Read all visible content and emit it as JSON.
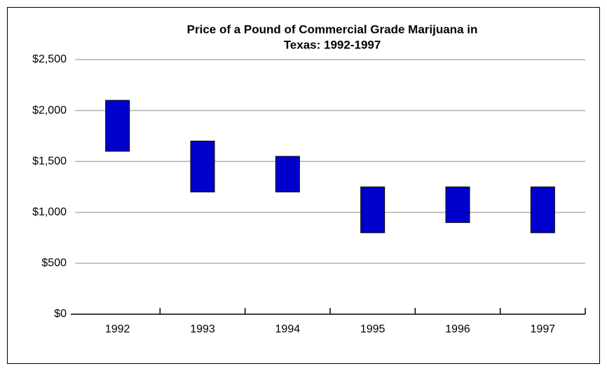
{
  "chart_data": {
    "type": "floating_bar",
    "title": [
      "Price of a Pound of Commercial Grade Marijuana in",
      "Texas: 1992-1997"
    ],
    "categories": [
      "1992",
      "1993",
      "1994",
      "1995",
      "1996",
      "1997"
    ],
    "low": [
      1600,
      1200,
      1200,
      800,
      900,
      800
    ],
    "high": [
      2100,
      1700,
      1550,
      1250,
      1250,
      1250
    ],
    "color": "#0000cc",
    "ylim": [
      0,
      2500
    ],
    "yticks": [
      {
        "value": 0,
        "label": "$0"
      },
      {
        "value": 500,
        "label": "$500"
      },
      {
        "value": 1000,
        "label": "$1,000"
      },
      {
        "value": 1500,
        "label": "$1,500"
      },
      {
        "value": 2000,
        "label": "$2,000"
      },
      {
        "value": 2500,
        "label": "$2,500"
      }
    ],
    "grid": true
  }
}
